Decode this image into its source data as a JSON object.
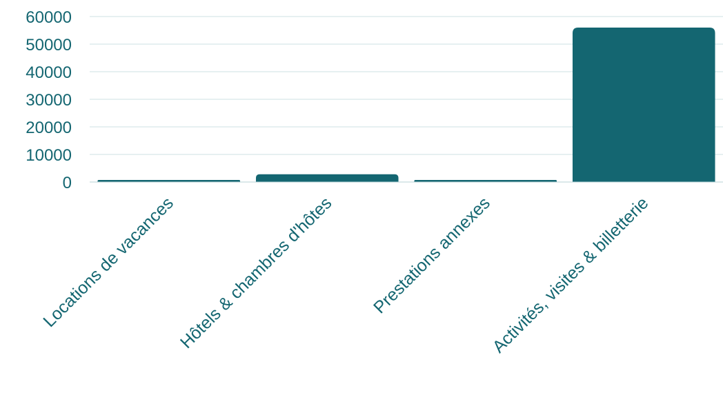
{
  "chart_data": {
    "type": "bar",
    "categories": [
      "Locations de vacances",
      "Hôtels & chambres d'hôtes",
      "Prestations annexes",
      "Activités, visites & billetterie"
    ],
    "values": [
      400,
      2800,
      200,
      56000
    ],
    "y_ticks": [
      "0",
      "10000",
      "20000",
      "30000",
      "40000",
      "50000",
      "60000"
    ],
    "ylim": [
      0,
      60000
    ],
    "grid": true,
    "legend": "none",
    "title": "",
    "xlabel": "",
    "ylabel": ""
  },
  "colors": {
    "bar": "#146671",
    "text": "#146671",
    "grid": "#cde0e3",
    "axis": "#b7d2d6"
  }
}
